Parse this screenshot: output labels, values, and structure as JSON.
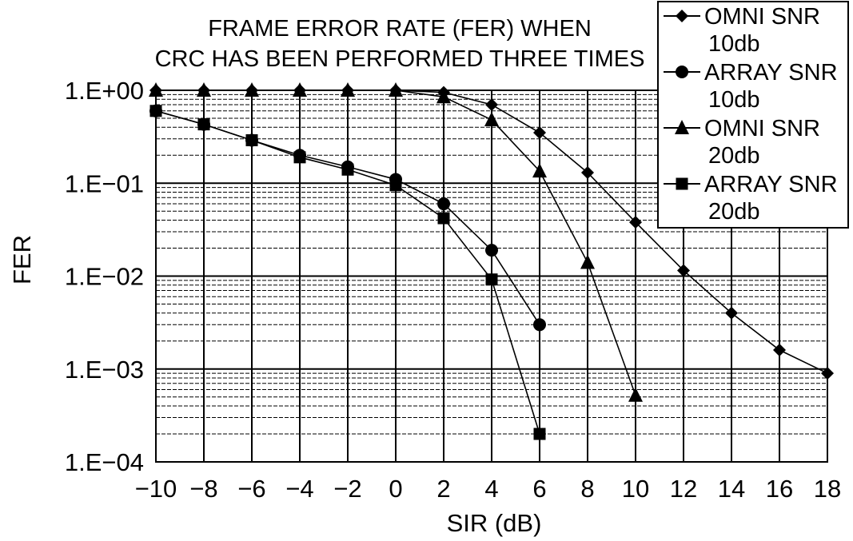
{
  "chart_data": {
    "type": "line",
    "title_lines": [
      "FRAME ERROR RATE (FER) WHEN",
      "CRC HAS BEEN PERFORMED THREE TIMES"
    ],
    "xlabel": "SIR (dB)",
    "ylabel": "FER",
    "x": [
      -10,
      -8,
      -6,
      -4,
      -2,
      0,
      2,
      4,
      6,
      8,
      10,
      12,
      14,
      16,
      18
    ],
    "x_tick_labels": [
      "−10",
      "−8",
      "−6",
      "−4",
      "−2",
      "0",
      "2",
      "4",
      "6",
      "8",
      "10",
      "12",
      "14",
      "16",
      "18"
    ],
    "y_scale": "log",
    "ylim": [
      0.0001,
      1
    ],
    "y_ticks": [
      1,
      0.1,
      0.01,
      0.001,
      0.0001
    ],
    "y_tick_labels": [
      "1.E+00",
      "1.E−01",
      "1.E−02",
      "1.E−03",
      "1.E−04"
    ],
    "grid": true,
    "legend_position": "top-right",
    "series": [
      {
        "name_lines": [
          "OMNI SNR",
          "10db"
        ],
        "marker": "diamond",
        "x": [
          -10,
          -8,
          -6,
          -4,
          -2,
          0,
          2,
          4,
          6,
          8,
          10,
          12,
          14,
          16,
          18
        ],
        "values": [
          1.0,
          1.0,
          1.0,
          1.0,
          1.0,
          1.0,
          0.95,
          0.7,
          0.35,
          0.13,
          0.038,
          0.0115,
          0.004,
          0.0016,
          0.0009
        ]
      },
      {
        "name_lines": [
          "ARRAY SNR",
          "10db"
        ],
        "marker": "circle",
        "x": [
          -10,
          -8,
          -6,
          -4,
          -2,
          0,
          2,
          4,
          6
        ],
        "values": [
          0.6,
          0.43,
          0.29,
          0.2,
          0.15,
          0.11,
          0.06,
          0.019,
          0.003
        ]
      },
      {
        "name_lines": [
          "OMNI SNR",
          "20db"
        ],
        "marker": "triangle",
        "x": [
          -10,
          -8,
          -6,
          -4,
          -2,
          0,
          2,
          4,
          6,
          8,
          10
        ],
        "values": [
          1.0,
          1.0,
          1.0,
          1.0,
          1.0,
          1.0,
          0.85,
          0.48,
          0.135,
          0.014,
          0.00052
        ]
      },
      {
        "name_lines": [
          "ARRAY SNR",
          "20db"
        ],
        "marker": "square",
        "x": [
          -10,
          -8,
          -6,
          -4,
          -2,
          0,
          2,
          4,
          6
        ],
        "values": [
          0.6,
          0.43,
          0.29,
          0.19,
          0.14,
          0.095,
          0.042,
          0.0092,
          0.0002
        ]
      }
    ]
  }
}
